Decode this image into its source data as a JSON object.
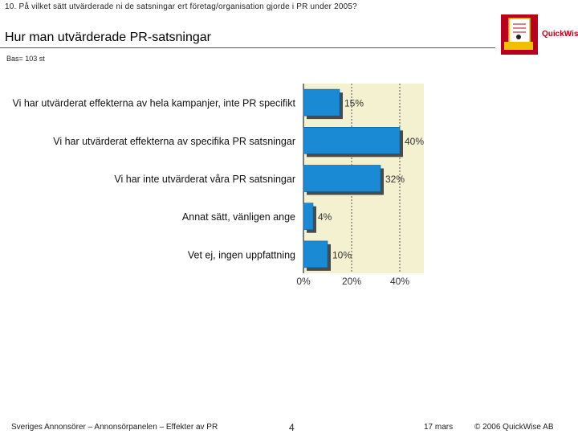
{
  "header": {
    "question": "10. På vilket sätt utvärderade ni de satsningar ert företag/organisation gjorde i PR under 2005?",
    "title": "Hur man utvärderade PR-satsningar",
    "base": "Bas= 103 st",
    "logo_text": "QuickWise"
  },
  "chart_data": {
    "type": "bar",
    "orientation": "horizontal",
    "categories": [
      "Vi har utvärderat effekterna av hela kampanjer, inte PR specifikt",
      "Vi har utvärderat effekterna av specifika PR satsningar",
      "Vi har inte utvärderat våra PR satsningar",
      "Annat sätt, vänligen ange",
      "Vet ej, ingen uppfattning"
    ],
    "values": [
      15,
      40,
      32,
      4,
      10
    ],
    "value_labels": [
      "15%",
      "40%",
      "32%",
      "4%",
      "10%"
    ],
    "xlim": [
      0,
      50
    ],
    "x_ticks": [
      "0%",
      "20%",
      "40%"
    ],
    "x_tick_values": [
      0,
      20,
      40
    ],
    "grid": "vertical dashed",
    "colors": {
      "bar": "#1a8ad4",
      "shadow": "#4a4a4a",
      "plot_bg": "#f3f1d0"
    }
  },
  "footer": {
    "left": "Sveriges Annonsörer – Annonsörpanelen – Effekter av PR",
    "page": "4",
    "date": "17 mars",
    "copyright": "© 2006 QuickWise AB"
  }
}
